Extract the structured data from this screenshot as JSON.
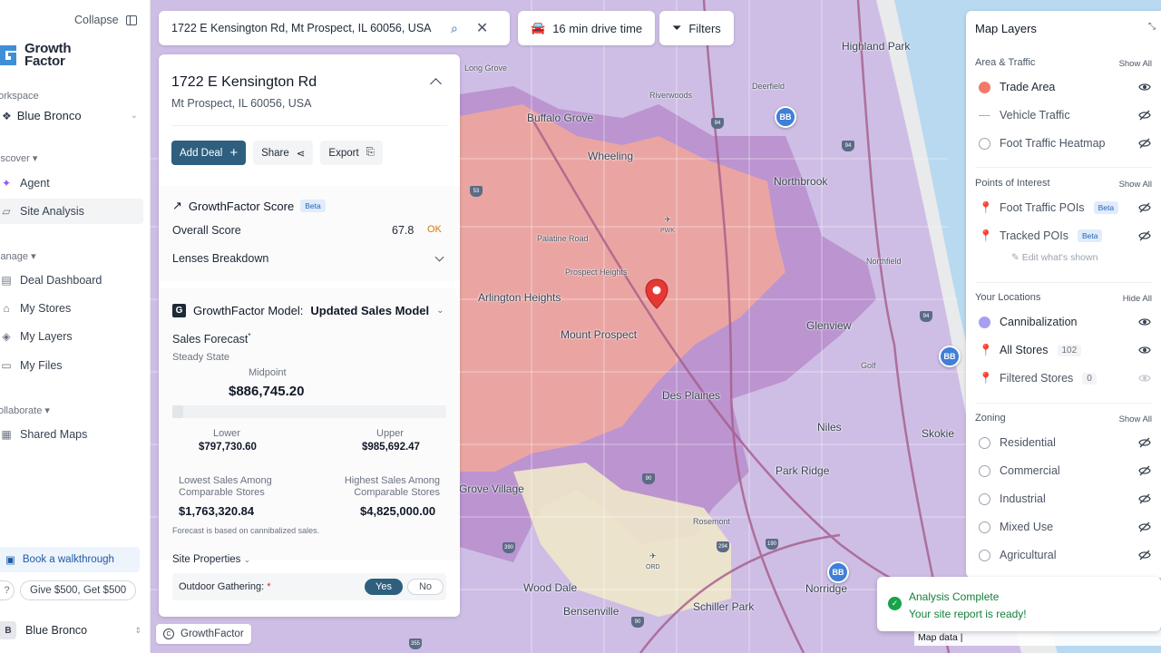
{
  "sidebar": {
    "collapse_label": "Collapse",
    "logo_line1": "Growth",
    "logo_line2": "Factor",
    "workspace_label": "orkspace",
    "workspace_name": "Blue Bronco",
    "discover_label": "iscover",
    "manage_label": "lanage",
    "collaborate_label": "ollaborate",
    "items": {
      "agent": "Agent",
      "site_analysis": "Site Analysis",
      "deal_dashboard": "Deal Dashboard",
      "my_stores": "My Stores",
      "my_layers": "My Layers",
      "my_files": "My Files",
      "shared_maps": "Shared Maps"
    },
    "walkthrough": "Book a walkthrough",
    "help": "?",
    "give": "Give $500, Get $500",
    "user_initial": "B",
    "user_name": "Blue Bronco"
  },
  "search": {
    "value": "1722 E Kensington Rd, Mt Prospect, IL 60056, USA",
    "drive_time": "16 min drive time",
    "filters": "Filters"
  },
  "panel": {
    "title": "1722 E Kensington Rd",
    "subtitle": "Mt Prospect, IL 60056, USA",
    "add_deal": "Add Deal",
    "share": "Share",
    "export": "Export",
    "score_title": "GrowthFactor Score",
    "beta": "Beta",
    "overall_label": "Overall Score",
    "overall_value": "67.8",
    "overall_status": "OK",
    "lenses": "Lenses Breakdown",
    "model_label": "GrowthFactor Model:",
    "model_value": "Updated Sales Model",
    "forecast_title": "Sales Forecast",
    "forecast_sub": "Steady State",
    "midpoint_label": "Midpoint",
    "midpoint_value": "$886,745.20",
    "lower_label": "Lower",
    "lower_value": "$797,730.60",
    "upper_label": "Upper",
    "upper_value": "$985,692.47",
    "lowest_label_1": "Lowest Sales Among",
    "lowest_label_2": "Comparable Stores",
    "lowest_value": "$1,763,320.84",
    "highest_label_1": "Highest Sales Among",
    "highest_label_2": "Comparable Stores",
    "highest_value": "$4,825,000.00",
    "footnote": "Forecast is based on cannibalized sales.",
    "site_props": "Site Properties",
    "outdoor_label": "Outdoor Gathering:",
    "yes": "Yes",
    "no": "No",
    "attribution": "GrowthFactor"
  },
  "map": {
    "cities": [
      "Arlington Heights",
      "Mount Prospect",
      "Des Plaines",
      "Wheeling",
      "Buffalo Grove",
      "Northbrook",
      "Glenview",
      "Park Ridge",
      "Niles",
      "Skokie",
      "Norridge",
      "Wood Dale",
      "Bensenville",
      "Schiller Park",
      "Grove Village",
      "Highland Park",
      "Deerfield",
      "Northfield",
      "Golf",
      "Prospect Heights",
      "Palatine Road",
      "Riverwoods",
      "Long Grove",
      "Rosemont"
    ],
    "markers": [
      "BB",
      "BB",
      "BB"
    ],
    "airports": [
      "PWK",
      "ORD"
    ]
  },
  "layers": {
    "title": "Map Layers",
    "area_traffic": "Area & Traffic",
    "show_all": "Show All",
    "hide_all": "Hide All",
    "trade_area": "Trade Area",
    "vehicle_traffic": "Vehicle Traffic",
    "foot_heatmap": "Foot Traffic Heatmap",
    "poi": "Points of Interest",
    "foot_pois": "Foot Traffic POIs",
    "tracked_pois": "Tracked POIs",
    "beta": "Beta",
    "edit_shown": "Edit what's shown",
    "your_locations": "Your Locations",
    "cannibalization": "Cannibalization",
    "all_stores": "All Stores",
    "all_stores_count": "102",
    "filtered_stores": "Filtered Stores",
    "filtered_count": "0",
    "zoning": "Zoning",
    "residential": "Residential",
    "commercial": "Commercial",
    "industrial": "Industrial",
    "mixed_use": "Mixed Use",
    "agricultural": "Agricultural",
    "colors": {
      "trade_area": "#f07a6a",
      "cannibalization": "#a5a1f0",
      "all_stores": "#3f7fd8",
      "filtered_stores": "#c7a8f0"
    }
  },
  "toast": {
    "title": "Analysis Complete",
    "message": "Your site report is ready!"
  },
  "map_data": "Map data |"
}
